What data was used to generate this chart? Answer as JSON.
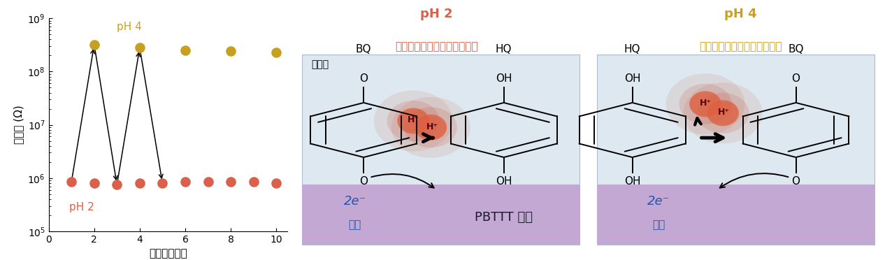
{
  "ph2_x": [
    1,
    2,
    3,
    4,
    5,
    6,
    7,
    8,
    9,
    10
  ],
  "ph2_y": [
    850000.0,
    800000.0,
    750000.0,
    800000.0,
    800000.0,
    850000.0,
    850000.0,
    850000.0,
    850000.0,
    800000.0
  ],
  "ph4_x": [
    2,
    4,
    6,
    8,
    10
  ],
  "ph4_y": [
    320000000.0,
    280000000.0,
    250000000.0,
    240000000.0,
    230000000.0
  ],
  "ph2_color": "#d9604a",
  "ph4_color": "#c8a020",
  "panel_bg": "#dde8f0",
  "film_bg": "#c4a8d4",
  "ylabel": "抗抗値 (Ω)",
  "xlabel": "繰り返し回数",
  "ylim_min": 100000.0,
  "ylim_max": 1000000000.0,
  "xlim_min": 0,
  "xlim_max": 10.5,
  "ph2_label": "pH 2",
  "ph4_label": "pH 4",
  "title_ph2": "pH 2",
  "title_ph4": "pH 4",
  "subtitle_ph2": "ホール密度増大、抗抗値減少",
  "subtitle_ph4": "ホール密度減少、抗抗値増大",
  "water_label": "水溶液",
  "film_label": "PBTTT 薄膜",
  "electron_label": "2e⁻",
  "denshi_label": "電子",
  "hplus": "H⁺"
}
